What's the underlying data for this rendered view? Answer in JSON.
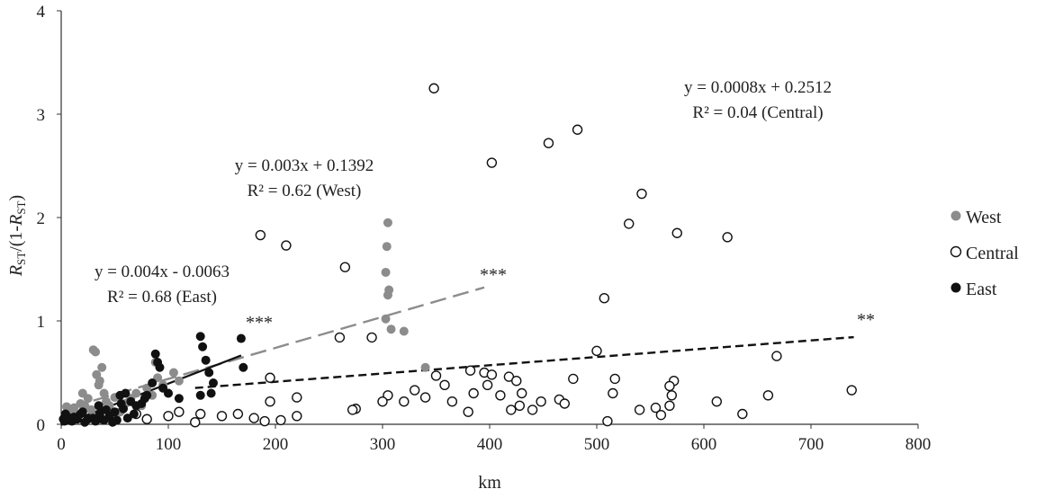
{
  "chart_data": {
    "type": "scatter",
    "xlabel": "km",
    "ylabel": {
      "main": "R",
      "sub": "ST",
      "mid": "/(1-",
      "main2": "R",
      "sub2": "ST",
      "end": ")"
    },
    "xlim": [
      0,
      800
    ],
    "ylim": [
      0,
      4
    ],
    "xticks": [
      0,
      100,
      200,
      300,
      400,
      500,
      600,
      700,
      800
    ],
    "yticks": [
      0,
      1,
      2,
      3,
      4
    ],
    "grid": false,
    "legend_position": "right",
    "colors": {
      "West": "#8c8c8c",
      "Central": "#ffffff",
      "East": "#111111"
    },
    "series": [
      {
        "name": "West",
        "marker": "filled-gray",
        "points": [
          [
            5,
            0.17
          ],
          [
            8,
            0.1
          ],
          [
            10,
            0.12
          ],
          [
            12,
            0.16
          ],
          [
            15,
            0.08
          ],
          [
            18,
            0.2
          ],
          [
            20,
            0.3
          ],
          [
            22,
            0.18
          ],
          [
            25,
            0.25
          ],
          [
            28,
            0.14
          ],
          [
            30,
            0.72
          ],
          [
            32,
            0.7
          ],
          [
            33,
            0.48
          ],
          [
            35,
            0.38
          ],
          [
            36,
            0.42
          ],
          [
            38,
            0.55
          ],
          [
            40,
            0.3
          ],
          [
            42,
            0.22
          ],
          [
            45,
            0.18
          ],
          [
            50,
            0.26
          ],
          [
            55,
            0.12
          ],
          [
            60,
            0.2
          ],
          [
            65,
            0.25
          ],
          [
            70,
            0.3
          ],
          [
            75,
            0.18
          ],
          [
            80,
            0.35
          ],
          [
            85,
            0.28
          ],
          [
            88,
            0.6
          ],
          [
            90,
            0.45
          ],
          [
            95,
            0.38
          ],
          [
            100,
            0.3
          ],
          [
            105,
            0.5
          ],
          [
            110,
            0.42
          ],
          [
            305,
            1.95
          ],
          [
            304,
            1.72
          ],
          [
            303,
            1.47
          ],
          [
            306,
            1.3
          ],
          [
            305,
            1.25
          ],
          [
            303,
            1.02
          ],
          [
            308,
            0.92
          ],
          [
            320,
            0.9
          ],
          [
            340,
            0.55
          ]
        ]
      },
      {
        "name": "Central",
        "marker": "open-circle",
        "points": [
          [
            348,
            3.25
          ],
          [
            482,
            2.85
          ],
          [
            455,
            2.72
          ],
          [
            402,
            2.53
          ],
          [
            542,
            2.23
          ],
          [
            530,
            1.94
          ],
          [
            575,
            1.85
          ],
          [
            622,
            1.81
          ],
          [
            186,
            1.83
          ],
          [
            210,
            1.73
          ],
          [
            265,
            1.52
          ],
          [
            507,
            1.22
          ],
          [
            260,
            0.84
          ],
          [
            290,
            0.84
          ],
          [
            500,
            0.71
          ],
          [
            668,
            0.66
          ],
          [
            395,
            0.5
          ],
          [
            382,
            0.52
          ],
          [
            402,
            0.48
          ],
          [
            418,
            0.46
          ],
          [
            350,
            0.47
          ],
          [
            425,
            0.42
          ],
          [
            478,
            0.44
          ],
          [
            517,
            0.44
          ],
          [
            572,
            0.42
          ],
          [
            568,
            0.37
          ],
          [
            358,
            0.38
          ],
          [
            398,
            0.38
          ],
          [
            330,
            0.33
          ],
          [
            305,
            0.28
          ],
          [
            430,
            0.3
          ],
          [
            385,
            0.3
          ],
          [
            410,
            0.28
          ],
          [
            465,
            0.24
          ],
          [
            470,
            0.2
          ],
          [
            555,
            0.16
          ],
          [
            612,
            0.22
          ],
          [
            660,
            0.28
          ],
          [
            738,
            0.33
          ],
          [
            515,
            0.3
          ],
          [
            540,
            0.14
          ],
          [
            568,
            0.18
          ],
          [
            570,
            0.28
          ],
          [
            300,
            0.22
          ],
          [
            220,
            0.26
          ],
          [
            195,
            0.22
          ],
          [
            195,
            0.45
          ],
          [
            320,
            0.22
          ],
          [
            340,
            0.26
          ],
          [
            365,
            0.22
          ],
          [
            380,
            0.12
          ],
          [
            428,
            0.18
          ],
          [
            440,
            0.14
          ],
          [
            448,
            0.22
          ],
          [
            420,
            0.14
          ],
          [
            510,
            0.03
          ],
          [
            560,
            0.09
          ],
          [
            636,
            0.1
          ],
          [
            275,
            0.15
          ],
          [
            272,
            0.14
          ],
          [
            125,
            0.02
          ],
          [
            130,
            0.1
          ],
          [
            150,
            0.08
          ],
          [
            165,
            0.1
          ],
          [
            180,
            0.06
          ],
          [
            190,
            0.03
          ],
          [
            205,
            0.04
          ],
          [
            220,
            0.08
          ],
          [
            70,
            0.1
          ],
          [
            80,
            0.05
          ],
          [
            100,
            0.08
          ],
          [
            110,
            0.12
          ]
        ]
      },
      {
        "name": "East",
        "marker": "filled-black",
        "points": [
          [
            2,
            0.05
          ],
          [
            3,
            0.03
          ],
          [
            4,
            0.1
          ],
          [
            5,
            0.08
          ],
          [
            6,
            0.04
          ],
          [
            8,
            0.06
          ],
          [
            10,
            0.03
          ],
          [
            12,
            0.07
          ],
          [
            15,
            0.05
          ],
          [
            18,
            0.1
          ],
          [
            20,
            0.12
          ],
          [
            22,
            0.02
          ],
          [
            25,
            0.05
          ],
          [
            30,
            0.06
          ],
          [
            32,
            0.03
          ],
          [
            35,
            0.18
          ],
          [
            36,
            0.1
          ],
          [
            38,
            0.05
          ],
          [
            40,
            0.04
          ],
          [
            42,
            0.14
          ],
          [
            45,
            0.08
          ],
          [
            48,
            0.02
          ],
          [
            50,
            0.12
          ],
          [
            52,
            0.04
          ],
          [
            55,
            0.28
          ],
          [
            56,
            0.2
          ],
          [
            58,
            0.15
          ],
          [
            60,
            0.3
          ],
          [
            62,
            0.06
          ],
          [
            65,
            0.22
          ],
          [
            68,
            0.1
          ],
          [
            70,
            0.18
          ],
          [
            75,
            0.2
          ],
          [
            78,
            0.25
          ],
          [
            80,
            0.28
          ],
          [
            85,
            0.4
          ],
          [
            88,
            0.68
          ],
          [
            90,
            0.6
          ],
          [
            92,
            0.55
          ],
          [
            95,
            0.35
          ],
          [
            100,
            0.3
          ],
          [
            110,
            0.25
          ],
          [
            130,
            0.85
          ],
          [
            132,
            0.75
          ],
          [
            135,
            0.62
          ],
          [
            138,
            0.5
          ],
          [
            140,
            0.3
          ],
          [
            142,
            0.4
          ],
          [
            130,
            0.28
          ],
          [
            168,
            0.83
          ],
          [
            170,
            0.55
          ]
        ]
      }
    ],
    "trendlines": [
      {
        "series": "West",
        "equation": "y = 0.003x + 0.1392",
        "r2": "R² = 0.62 (West)",
        "slope": 0.003,
        "intercept": 0.1392,
        "x_range": [
          30,
          395
        ],
        "style": "long-dash",
        "color": "#8c8c8c",
        "significance": "***"
      },
      {
        "series": "Central",
        "equation": "y = 0.0008x + 0.2512",
        "r2": "R² = 0.04 (Central)",
        "slope": 0.0008,
        "intercept": 0.2512,
        "x_range": [
          125,
          740
        ],
        "style": "short-dash",
        "color": "#111111",
        "significance": "**"
      },
      {
        "series": "East",
        "equation": "y = 0.004x - 0.0063",
        "r2": "R² = 0.68 (East)",
        "slope": 0.004,
        "intercept": -0.0063,
        "x_range": [
          0,
          168
        ],
        "style": "solid",
        "color": "#111111",
        "significance": "***"
      }
    ],
    "legend": [
      "West",
      "Central",
      "East"
    ]
  }
}
